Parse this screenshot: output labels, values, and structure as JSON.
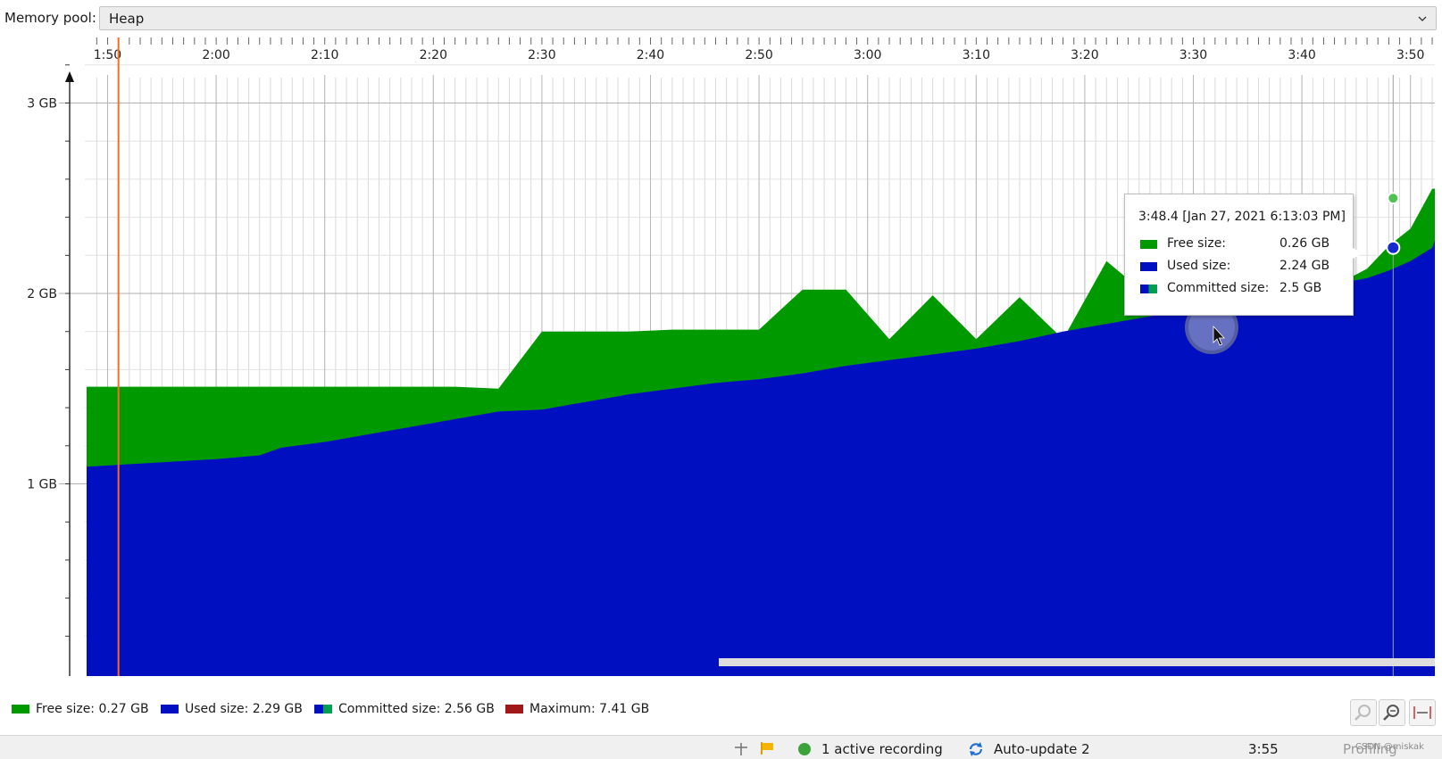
{
  "toolbar": {
    "pool_label": "Memory pool:",
    "pool_value": "Heap"
  },
  "chart_data": {
    "type": "area",
    "x_unit": "minutes",
    "x": [
      1.8,
      1.95,
      2.0,
      2.0667,
      2.1,
      2.1667,
      2.2333,
      2.3,
      2.3667,
      2.4333,
      2.5,
      2.5667,
      2.6333,
      2.7,
      2.7667,
      2.8333,
      2.9,
      2.9667,
      3.0333,
      3.1,
      3.1667,
      3.2333,
      3.3,
      3.3667,
      3.4333,
      3.5,
      3.5667,
      3.6333,
      3.7,
      3.7667,
      3.8,
      3.8333,
      3.8667,
      3.9
    ],
    "series": [
      {
        "name": "Committed size",
        "unit": "GB",
        "values": [
          1.51,
          1.51,
          1.51,
          1.51,
          1.51,
          1.51,
          1.51,
          1.51,
          1.51,
          1.5,
          1.8,
          1.8,
          1.8,
          1.81,
          1.81,
          1.81,
          2.02,
          2.02,
          1.76,
          1.99,
          1.76,
          1.98,
          1.76,
          2.17,
          1.98,
          2.16,
          2.0,
          2.15,
          2.01,
          2.13,
          2.25,
          2.34,
          2.55,
          2.55
        ]
      },
      {
        "name": "Used size",
        "unit": "GB",
        "values": [
          1.09,
          1.12,
          1.13,
          1.15,
          1.19,
          1.22,
          1.26,
          1.3,
          1.34,
          1.38,
          1.39,
          1.43,
          1.47,
          1.5,
          1.53,
          1.55,
          1.58,
          1.62,
          1.65,
          1.68,
          1.71,
          1.75,
          1.8,
          1.84,
          1.88,
          1.92,
          1.96,
          2.0,
          2.04,
          2.08,
          2.12,
          2.17,
          2.24,
          2.28
        ]
      }
    ],
    "x_ticks": [
      "1:50",
      "2:00",
      "2:10",
      "2:20",
      "2:30",
      "2:40",
      "2:50",
      "3:00",
      "3:10",
      "3:20",
      "3:30",
      "3:40",
      "3:50"
    ],
    "y_ticks": [
      "1 GB",
      "2 GB",
      "3 GB"
    ],
    "xlim": [
      1.8,
      3.9
    ],
    "ylim": [
      0,
      3.3
    ],
    "grid": true,
    "colors": {
      "free": "#009a00",
      "used": "#0010c0",
      "committed": "#00a050",
      "maximum": "#a01818",
      "marker": "#ff6a1a"
    },
    "marker_x": 1.85,
    "cursor_x": 3.8067
  },
  "tooltip": {
    "title": "3:48.4 [Jan 27, 2021 6:13:03 PM]",
    "rows": [
      {
        "label": "Free size:",
        "value": "0.26 GB"
      },
      {
        "label": "Used size:",
        "value": "2.24 GB"
      },
      {
        "label": "Committed size:",
        "value": "2.5 GB"
      }
    ]
  },
  "legend": {
    "free": "Free size: 0.27 GB",
    "used": "Used size: 2.29 GB",
    "committed": "Committed size: 2.56 GB",
    "maximum": "Maximum: 7.41 GB"
  },
  "status": {
    "recording": "1 active recording",
    "auto_update": "Auto-update 2",
    "clock": "3:55",
    "profiling": "Profiling",
    "watermark": "CSDN @miskak"
  },
  "icons": [
    "pin-icon",
    "flag-icon",
    "recording-dot-icon",
    "refresh-icon",
    "zoom-in-icon",
    "zoom-out-icon",
    "fit-icon",
    "chevron-down-icon"
  ]
}
